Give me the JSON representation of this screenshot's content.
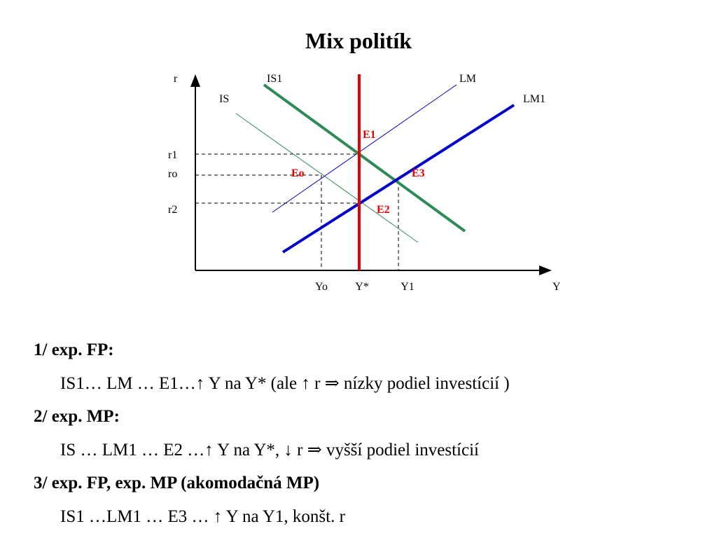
{
  "title": "Mix politík",
  "diagram": {
    "axis_y": "r",
    "axis_x": "Y",
    "curves": {
      "IS": "IS",
      "IS1": "IS1",
      "LM": "LM",
      "LM1": "LM1",
      "vertical": "Y*"
    },
    "points": {
      "E1": "E1",
      "Eo": "Eo",
      "E3": "E3",
      "E2": "E2"
    },
    "y_ticks": {
      "r1": "r1",
      "ro": "ro",
      "r2": "r2"
    },
    "x_ticks": {
      "Yo": "Yo",
      "Ystar": "Y*",
      "Y1": "Y1"
    },
    "colors": {
      "IS": "#2e8b57",
      "IS1": "#2e8b57",
      "LM": "#0000cc",
      "LM1": "#0000cc",
      "vertical": "#e60000",
      "point_labels": "#e60000"
    }
  },
  "notes": [
    {
      "text": "1/  exp. FP:",
      "heading": true
    },
    {
      "text": "IS1… LM …  E1…↑ Y na Y*  (ale ↑ r  ⇒  nízky podiel investícií )",
      "heading": false
    },
    {
      "text": "2/  exp. MP:",
      "heading": true
    },
    {
      "text": "IS  … LM1 … E2 …↑ Y na Y*,  ↓ r   ⇒ vyšší podiel investícií",
      "heading": false
    },
    {
      "text": "3/  exp. FP,  exp. MP (akomodačná MP)",
      "heading": true
    },
    {
      "text": "IS1 …LM1 … E3 …  ↑ Y na Y1, konšt. r",
      "heading": false
    }
  ]
}
